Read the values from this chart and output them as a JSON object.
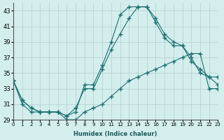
{
  "xlabel": "Humidex (Indice chaleur)",
  "bg_color": "#d4eeed",
  "grid_color": "#b0cece",
  "line_color": "#1a7070",
  "series": [
    {
      "x": [
        0,
        1,
        2,
        3,
        4,
        5,
        6,
        7,
        8,
        9,
        10,
        11,
        12,
        13,
        14,
        15,
        16,
        17,
        18,
        19,
        20,
        21,
        22,
        23
      ],
      "y": [
        34,
        31,
        30,
        30,
        30,
        30,
        29,
        29,
        30,
        30.5,
        31,
        32,
        33,
        34,
        34.5,
        35,
        35.5,
        36,
        36.5,
        37,
        37.5,
        37.5,
        33,
        33
      ]
    },
    {
      "x": [
        0,
        1,
        2,
        3,
        4,
        5,
        6,
        7,
        8,
        9,
        10,
        11,
        12,
        13,
        14,
        15,
        16,
        17,
        18,
        19,
        20,
        21,
        22,
        23
      ],
      "y": [
        34,
        31.5,
        30.5,
        30,
        30,
        30,
        29.5,
        30.5,
        33,
        33,
        35.5,
        38,
        40,
        42,
        43.5,
        43.5,
        41.5,
        39.5,
        38.5,
        38.5,
        36.5,
        35.5,
        34.5,
        34.5
      ]
    },
    {
      "x": [
        0,
        1,
        2,
        3,
        4,
        5,
        6,
        7,
        8,
        9,
        10,
        11,
        12,
        13,
        14,
        15,
        16,
        17,
        18,
        19,
        20,
        21,
        22,
        23
      ],
      "y": [
        34,
        31.5,
        30.5,
        30,
        30,
        30,
        29.5,
        30,
        33.5,
        33.5,
        36,
        39,
        42.5,
        43.5,
        43.5,
        43.5,
        42,
        40,
        39,
        38.5,
        37,
        35,
        34.5,
        33.5
      ]
    }
  ],
  "ylim": [
    29,
    44
  ],
  "xlim": [
    0,
    23
  ],
  "yticks": [
    29,
    31,
    33,
    35,
    37,
    39,
    41,
    43
  ],
  "xticks": [
    0,
    1,
    2,
    3,
    4,
    5,
    6,
    7,
    8,
    9,
    10,
    11,
    12,
    13,
    14,
    15,
    16,
    17,
    18,
    19,
    20,
    21,
    22,
    23
  ],
  "xtick_labels": [
    "0",
    "1",
    "2",
    "3",
    "4",
    "5",
    "6",
    "7",
    "8",
    "9",
    "10",
    "11",
    "12",
    "13",
    "14",
    "15",
    "16",
    "17",
    "18",
    "19",
    "20",
    "21",
    "22",
    "23"
  ]
}
